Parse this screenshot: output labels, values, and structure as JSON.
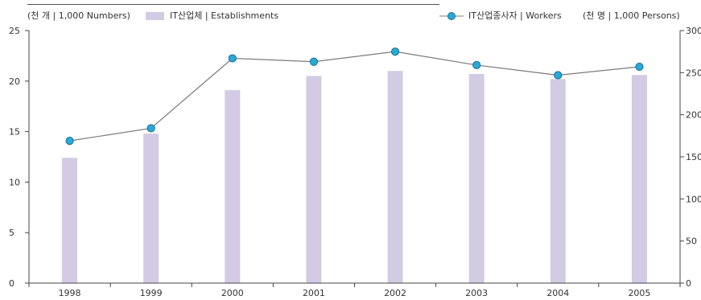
{
  "legend": {
    "unit_left": "(천 개 | 1,000 Numbers)",
    "unit_right": "(천 명 | 1,000 Persons)",
    "bar_label": "IT산업체 | Establishments",
    "line_label": "IT산업종사자 | Workers"
  },
  "colors": {
    "bar": "#d3cbe3",
    "line": "#7a7a7a",
    "marker": "#29a9d8",
    "marker_stroke": "#1a6f96",
    "axis": "#444444"
  },
  "chart_data": {
    "type": "bar",
    "categories": [
      "1998",
      "1999",
      "2000",
      "2001",
      "2002",
      "2003",
      "2004",
      "2005"
    ],
    "series": [
      {
        "name": "IT산업체 | Establishments",
        "type": "bar",
        "axis": "left",
        "values": [
          12.4,
          14.8,
          19.1,
          20.5,
          21.0,
          20.7,
          20.2,
          20.6
        ]
      },
      {
        "name": "IT산업종사자 | Workers",
        "type": "line",
        "axis": "right",
        "values": [
          169,
          184,
          267,
          263,
          275,
          259,
          247,
          257
        ]
      }
    ],
    "y_left": {
      "range": [
        0,
        25
      ],
      "ticks": [
        "0",
        "5",
        "10",
        "15",
        "20",
        "25"
      ]
    },
    "y_right": {
      "range": [
        0,
        300
      ],
      "ticks": [
        "0",
        "50",
        "100",
        "150",
        "200",
        "250",
        "300"
      ]
    },
    "grid": false,
    "legend_position": "top"
  }
}
